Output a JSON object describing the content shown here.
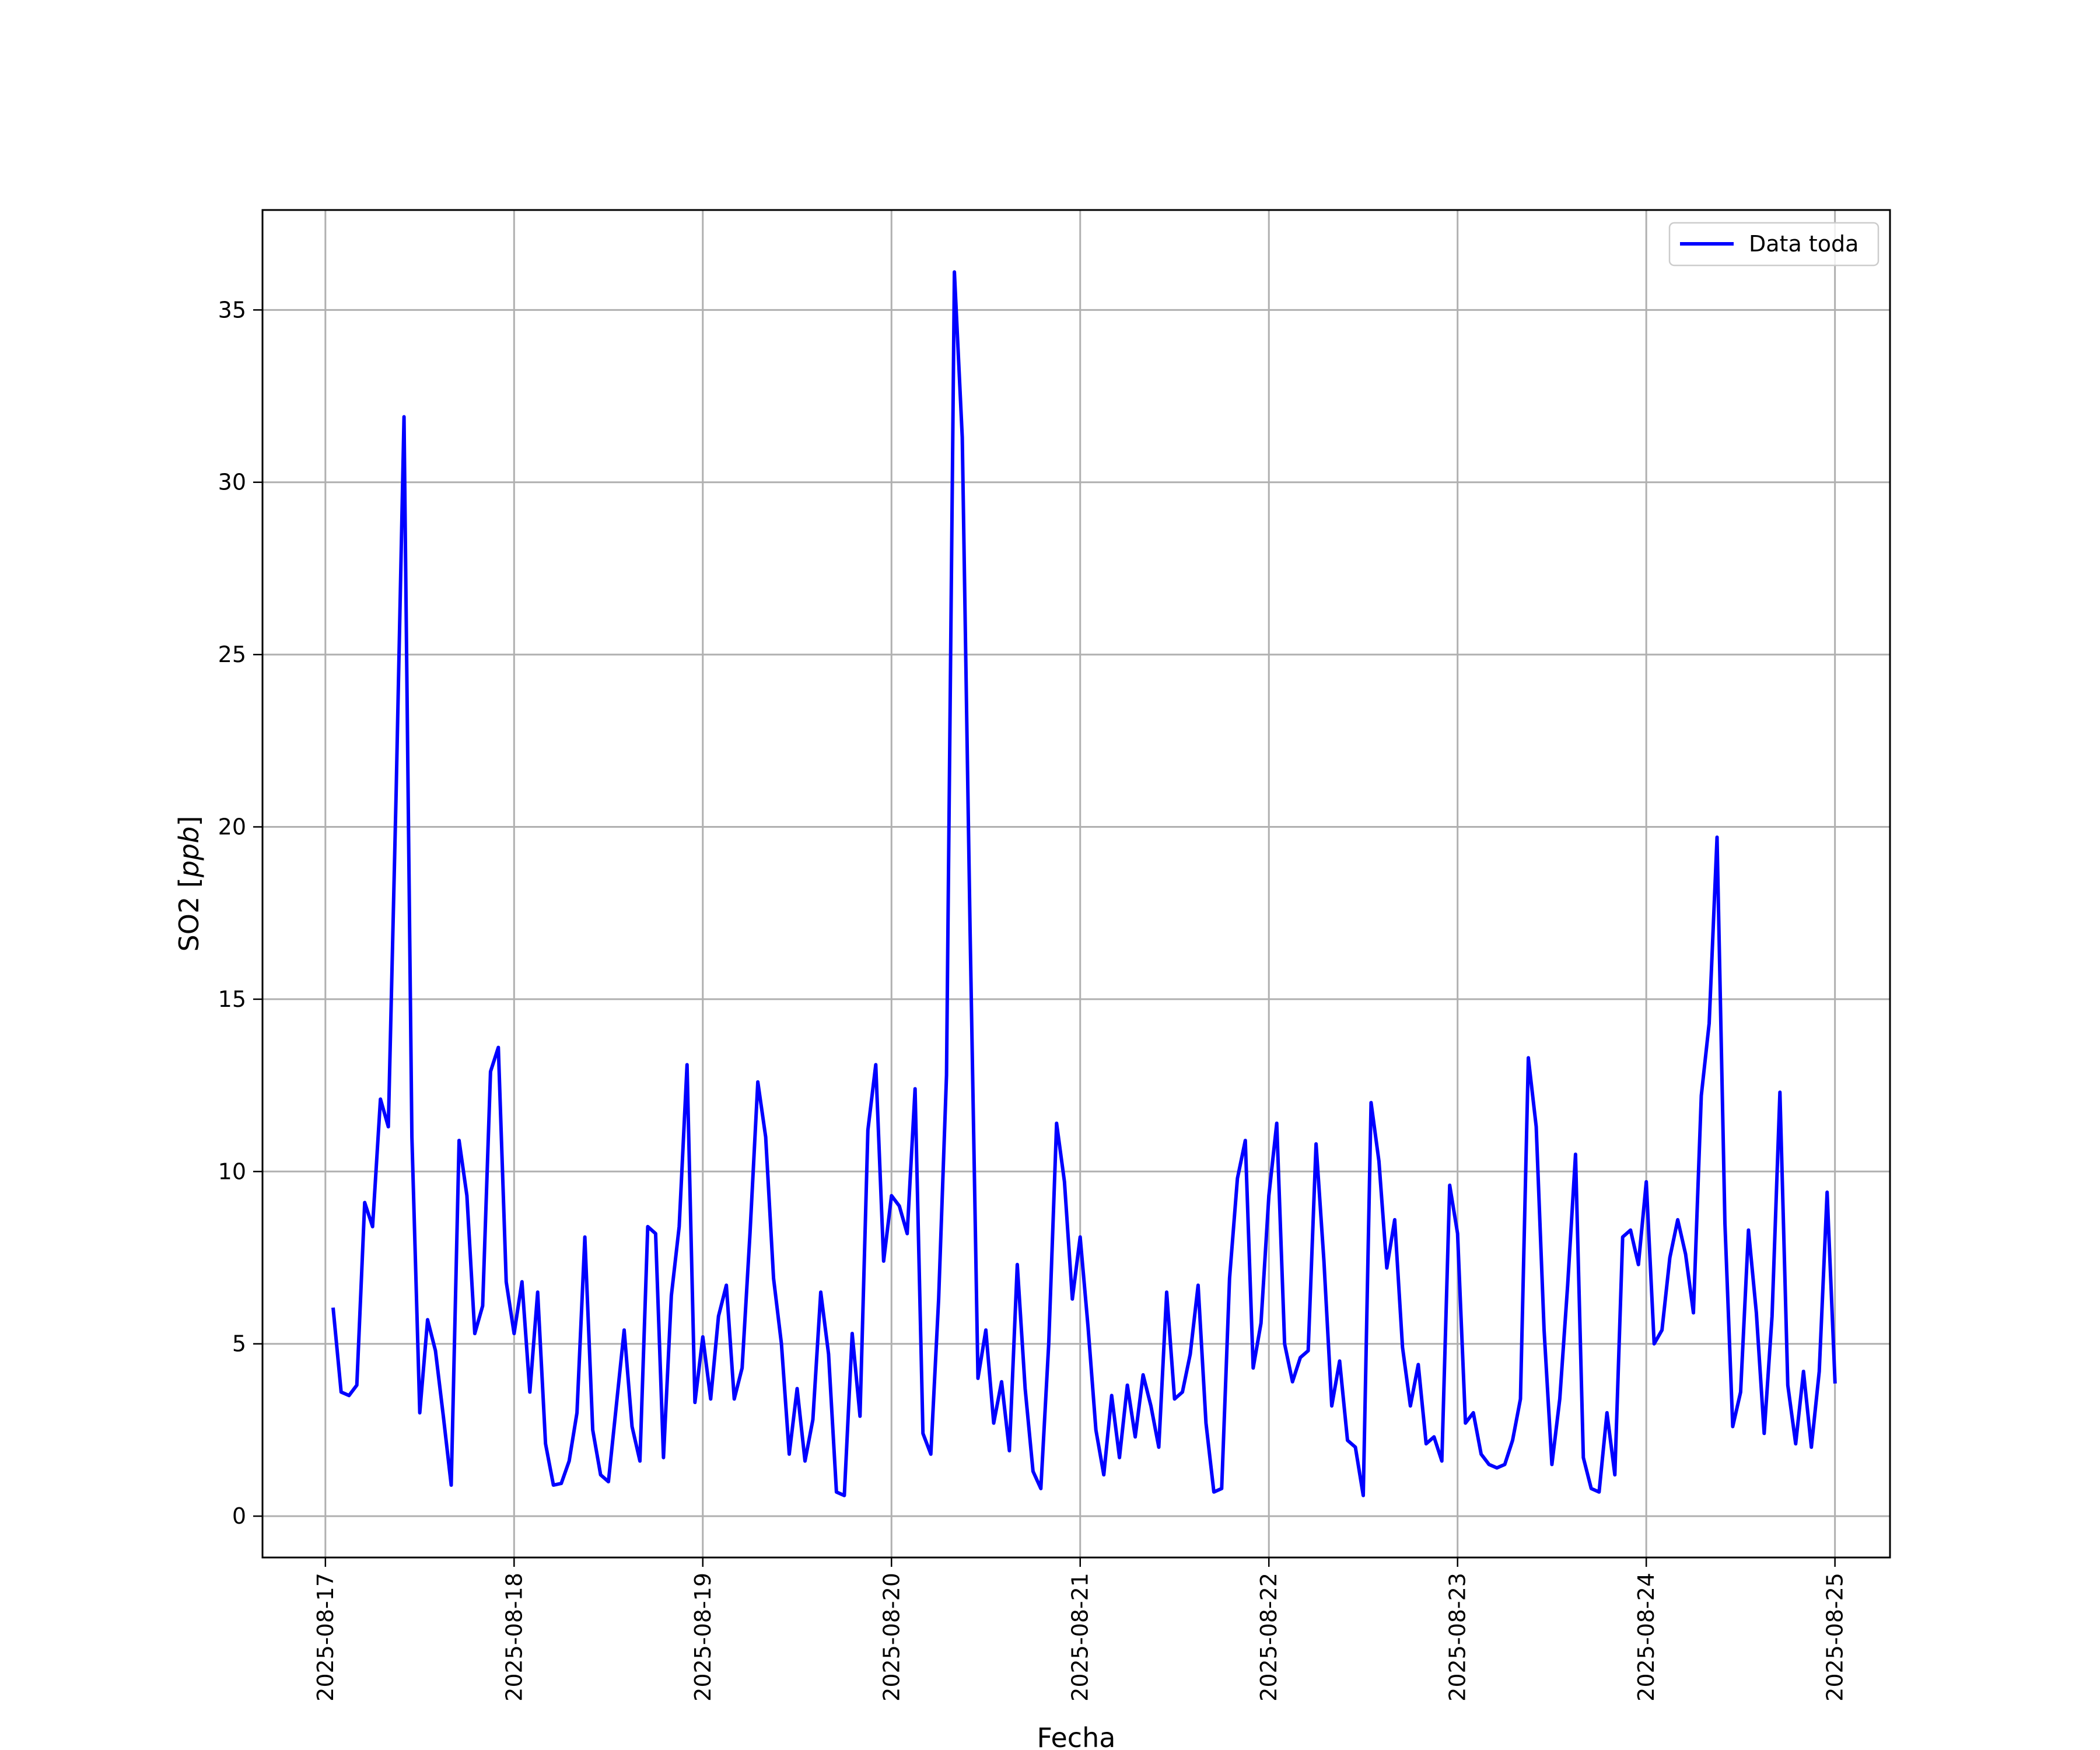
{
  "chart_data": {
    "type": "line",
    "title": "",
    "xlabel": "Fecha",
    "ylabel_text": "SO2 [",
    "ylabel_unit": "ppb",
    "ylabel_close": "]",
    "x_start_date": "2025-08-17",
    "xlim": [
      "2025-08-16T16:00",
      "2025-08-25T07:00"
    ],
    "x_tick_labels": [
      "2025-08-17",
      "2025-08-18",
      "2025-08-19",
      "2025-08-20",
      "2025-08-21",
      "2025-08-22",
      "2025-08-23",
      "2025-08-24",
      "2025-08-25"
    ],
    "ylim": [
      -1.2,
      37.9
    ],
    "y_ticks": [
      0,
      5,
      10,
      15,
      20,
      25,
      30,
      35
    ],
    "grid": true,
    "legend_position": "top-right",
    "series": [
      {
        "name": "Data toda",
        "color": "#0000ff",
        "x": [
          "2025-08-17T01:00",
          "2025-08-17T02:00",
          "2025-08-17T03:00",
          "2025-08-17T04:00",
          "2025-08-17T05:00",
          "2025-08-17T06:00",
          "2025-08-17T07:00",
          "2025-08-17T08:00",
          "2025-08-17T09:00",
          "2025-08-17T10:00",
          "2025-08-17T11:00",
          "2025-08-17T12:00",
          "2025-08-17T13:00",
          "2025-08-17T14:00",
          "2025-08-17T15:00",
          "2025-08-17T16:00",
          "2025-08-17T17:00",
          "2025-08-17T18:00",
          "2025-08-17T19:00",
          "2025-08-17T20:00",
          "2025-08-17T21:00",
          "2025-08-17T22:00",
          "2025-08-17T23:00",
          "2025-08-18T00:00",
          "2025-08-18T01:00",
          "2025-08-18T02:00",
          "2025-08-18T03:00",
          "2025-08-18T04:00",
          "2025-08-18T05:00",
          "2025-08-18T06:00",
          "2025-08-18T07:00",
          "2025-08-18T08:00",
          "2025-08-18T09:00",
          "2025-08-18T10:00",
          "2025-08-18T11:00",
          "2025-08-18T12:00",
          "2025-08-18T13:00",
          "2025-08-18T14:00",
          "2025-08-18T15:00",
          "2025-08-18T16:00",
          "2025-08-18T17:00",
          "2025-08-18T18:00",
          "2025-08-18T19:00",
          "2025-08-18T20:00",
          "2025-08-18T21:00",
          "2025-08-18T22:00",
          "2025-08-18T23:00",
          "2025-08-19T00:00",
          "2025-08-19T01:00",
          "2025-08-19T02:00",
          "2025-08-19T03:00",
          "2025-08-19T04:00",
          "2025-08-19T05:00",
          "2025-08-19T06:00",
          "2025-08-19T07:00",
          "2025-08-19T08:00",
          "2025-08-19T09:00",
          "2025-08-19T10:00",
          "2025-08-19T11:00",
          "2025-08-19T12:00",
          "2025-08-19T13:00",
          "2025-08-19T14:00",
          "2025-08-19T15:00",
          "2025-08-19T16:00",
          "2025-08-19T17:00",
          "2025-08-19T18:00",
          "2025-08-19T19:00",
          "2025-08-19T20:00",
          "2025-08-19T21:00",
          "2025-08-19T22:00",
          "2025-08-19T23:00",
          "2025-08-20T00:00",
          "2025-08-20T01:00",
          "2025-08-20T02:00",
          "2025-08-20T03:00",
          "2025-08-20T04:00",
          "2025-08-20T05:00",
          "2025-08-20T06:00",
          "2025-08-20T07:00",
          "2025-08-20T08:00",
          "2025-08-20T09:00",
          "2025-08-20T10:00",
          "2025-08-20T11:00",
          "2025-08-20T12:00",
          "2025-08-20T13:00",
          "2025-08-20T14:00",
          "2025-08-20T15:00",
          "2025-08-20T16:00",
          "2025-08-20T17:00",
          "2025-08-20T18:00",
          "2025-08-20T19:00",
          "2025-08-20T20:00",
          "2025-08-20T21:00",
          "2025-08-20T22:00",
          "2025-08-20T23:00",
          "2025-08-21T00:00",
          "2025-08-21T01:00",
          "2025-08-21T02:00",
          "2025-08-21T03:00",
          "2025-08-21T04:00",
          "2025-08-21T05:00",
          "2025-08-21T06:00",
          "2025-08-21T07:00",
          "2025-08-21T08:00",
          "2025-08-21T09:00",
          "2025-08-21T10:00",
          "2025-08-21T11:00",
          "2025-08-21T12:00",
          "2025-08-21T13:00",
          "2025-08-21T14:00",
          "2025-08-21T15:00",
          "2025-08-21T16:00",
          "2025-08-21T17:00",
          "2025-08-21T18:00",
          "2025-08-21T19:00",
          "2025-08-21T20:00",
          "2025-08-21T21:00",
          "2025-08-21T22:00",
          "2025-08-21T23:00",
          "2025-08-22T00:00",
          "2025-08-22T01:00",
          "2025-08-22T02:00",
          "2025-08-22T03:00",
          "2025-08-22T04:00",
          "2025-08-22T05:00",
          "2025-08-22T06:00",
          "2025-08-22T07:00",
          "2025-08-22T08:00",
          "2025-08-22T09:00",
          "2025-08-22T10:00",
          "2025-08-22T11:00",
          "2025-08-22T12:00",
          "2025-08-22T13:00",
          "2025-08-22T14:00",
          "2025-08-22T15:00",
          "2025-08-22T16:00",
          "2025-08-22T17:00",
          "2025-08-22T18:00",
          "2025-08-22T19:00",
          "2025-08-22T20:00",
          "2025-08-22T21:00",
          "2025-08-22T22:00",
          "2025-08-22T23:00",
          "2025-08-23T00:00",
          "2025-08-23T01:00",
          "2025-08-23T02:00",
          "2025-08-23T03:00",
          "2025-08-23T04:00",
          "2025-08-23T05:00",
          "2025-08-23T06:00",
          "2025-08-23T07:00",
          "2025-08-23T08:00",
          "2025-08-23T09:00",
          "2025-08-23T10:00",
          "2025-08-23T11:00",
          "2025-08-23T12:00",
          "2025-08-23T13:00",
          "2025-08-23T14:00",
          "2025-08-23T15:00",
          "2025-08-23T16:00",
          "2025-08-23T17:00",
          "2025-08-23T18:00",
          "2025-08-23T19:00",
          "2025-08-23T20:00",
          "2025-08-23T21:00",
          "2025-08-23T22:00",
          "2025-08-23T23:00",
          "2025-08-24T00:00",
          "2025-08-24T01:00",
          "2025-08-24T02:00",
          "2025-08-24T03:00",
          "2025-08-24T04:00",
          "2025-08-24T05:00",
          "2025-08-24T06:00",
          "2025-08-24T07:00",
          "2025-08-24T08:00",
          "2025-08-24T09:00",
          "2025-08-24T10:00",
          "2025-08-24T11:00",
          "2025-08-24T12:00",
          "2025-08-24T13:00",
          "2025-08-24T14:00",
          "2025-08-24T15:00",
          "2025-08-24T16:00",
          "2025-08-24T17:00",
          "2025-08-24T18:00",
          "2025-08-24T19:00",
          "2025-08-24T20:00",
          "2025-08-24T21:00",
          "2025-08-24T22:00",
          "2025-08-24T23:00",
          "2025-08-25T00:00"
        ],
        "values": [
          6.0,
          3.6,
          3.5,
          3.8,
          9.1,
          8.4,
          12.1,
          11.3,
          21.0,
          31.9,
          11.0,
          3.0,
          5.7,
          4.8,
          2.9,
          0.9,
          10.9,
          9.3,
          5.3,
          6.1,
          12.9,
          13.6,
          6.8,
          5.3,
          6.8,
          3.6,
          6.5,
          2.1,
          0.9,
          0.95,
          1.6,
          3.0,
          8.1,
          2.5,
          1.2,
          1.0,
          3.2,
          5.4,
          2.6,
          1.6,
          8.4,
          8.2,
          1.7,
          6.4,
          8.4,
          13.1,
          3.3,
          5.2,
          3.4,
          5.8,
          6.7,
          3.4,
          4.3,
          8.2,
          12.6,
          11.0,
          6.9,
          5.0,
          1.8,
          3.7,
          1.6,
          2.8,
          6.5,
          4.7,
          0.7,
          0.6,
          5.3,
          2.9,
          11.2,
          13.1,
          7.4,
          9.3,
          9.0,
          8.2,
          12.4,
          2.4,
          1.8,
          6.3,
          12.8,
          36.1,
          31.3,
          17.0,
          4.0,
          5.4,
          2.7,
          3.9,
          1.9,
          7.3,
          3.7,
          1.3,
          0.8,
          5.0,
          11.4,
          9.7,
          6.3,
          8.1,
          5.5,
          2.5,
          1.2,
          3.5,
          1.7,
          3.8,
          2.3,
          4.1,
          3.2,
          2.0,
          6.5,
          3.4,
          3.6,
          4.7,
          6.7,
          2.7,
          0.7,
          0.8,
          6.9,
          9.8,
          10.9,
          4.3,
          5.6,
          9.3,
          11.4,
          5.0,
          3.9,
          4.6,
          4.8,
          10.8,
          7.4,
          3.2,
          4.5,
          2.2,
          2.0,
          0.6,
          12.0,
          10.3,
          7.2,
          8.6,
          4.9,
          3.2,
          4.4,
          2.1,
          2.3,
          1.6,
          9.6,
          8.2,
          2.7,
          3.0,
          1.8,
          1.5,
          1.4,
          1.5,
          2.2,
          3.4,
          13.3,
          11.3,
          5.4,
          1.5,
          3.4,
          6.7,
          10.5,
          1.7,
          0.8,
          0.7,
          3.0,
          1.2,
          8.1,
          8.3,
          7.3,
          9.7,
          5.0,
          5.4,
          7.5,
          8.6,
          7.6,
          5.9,
          12.2,
          14.3,
          19.7,
          8.5,
          2.6,
          3.6,
          8.3,
          5.9,
          2.4,
          5.8,
          12.3,
          3.8,
          2.1,
          4.2,
          2.0,
          4.2,
          9.4,
          3.9
        ]
      }
    ]
  }
}
